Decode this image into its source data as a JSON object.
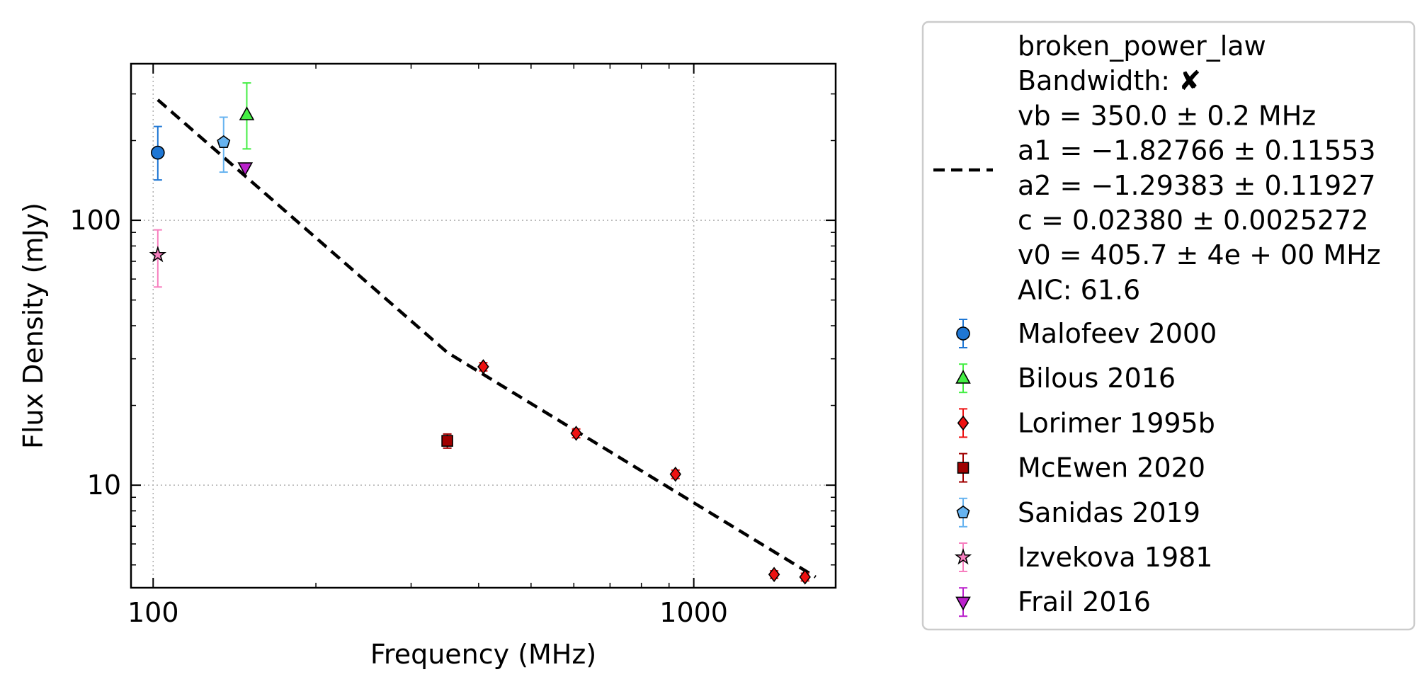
{
  "chart_data": {
    "type": "scatter",
    "xlabel": "Frequency (MHz)",
    "ylabel": "Flux Density (mJy)",
    "xscale": "log",
    "yscale": "log",
    "xlim": [
      91,
      1830
    ],
    "ylim": [
      4.1,
      390
    ],
    "grid": true,
    "legend_placement": "outside-right",
    "x_ticks": [
      {
        "value": 100,
        "label": "100"
      },
      {
        "value": 1000,
        "label": "1000"
      }
    ],
    "y_ticks": [
      {
        "value": 10,
        "label": "10"
      },
      {
        "value": 100,
        "label": "100"
      }
    ],
    "fit": {
      "name": "broken_power_law",
      "color": "#000000",
      "style": "dashed",
      "x": [
        102,
        350,
        1680
      ],
      "y": [
        285,
        31.7,
        4.5
      ],
      "legend_lines": [
        "broken_power_law",
        "Bandwidth: ✘",
        "vb = 350.0 ± 0.2 MHz",
        "a1 = −1.82766 ± 0.11553",
        "a2 = −1.29383 ± 0.11927",
        "c = 0.02380 ± 0.0025272",
        "v0 = 405.7 ± 4e + 00 MHz",
        "AIC: 61.6"
      ]
    },
    "series": [
      {
        "name": "Malofeev 2000",
        "marker": "circle",
        "color": "#1f77d4",
        "errcolor": "#1f77d4",
        "points": [
          {
            "x": 102,
            "y": 180,
            "ylo": 142,
            "yhi": 226
          }
        ]
      },
      {
        "name": "Bilous 2016",
        "marker": "triangle-up",
        "color": "#44ee44",
        "errcolor": "#44ee44",
        "points": [
          {
            "x": 149,
            "y": 250,
            "ylo": 186,
            "yhi": 330
          }
        ]
      },
      {
        "name": "Lorimer 1995b",
        "marker": "diamond",
        "color": "#ee1111",
        "errcolor": "#ee1111",
        "points": [
          {
            "x": 408,
            "y": 28,
            "ylo": 27,
            "yhi": 29
          },
          {
            "x": 606,
            "y": 15.7,
            "ylo": 15.1,
            "yhi": 16.3
          },
          {
            "x": 925,
            "y": 11,
            "ylo": 10.6,
            "yhi": 11.4
          },
          {
            "x": 1408,
            "y": 4.6,
            "ylo": 4.45,
            "yhi": 4.75
          },
          {
            "x": 1606,
            "y": 4.5,
            "ylo": 4.35,
            "yhi": 4.65
          }
        ]
      },
      {
        "name": "McEwen 2020",
        "marker": "square",
        "color": "#a00000",
        "errcolor": "#a00000",
        "points": [
          {
            "x": 350,
            "y": 14.7,
            "ylo": 13.8,
            "yhi": 15.6
          }
        ]
      },
      {
        "name": "Sanidas 2019",
        "marker": "pentagon",
        "color": "#66b3f0",
        "errcolor": "#66b3f0",
        "points": [
          {
            "x": 135,
            "y": 197,
            "ylo": 152,
            "yhi": 245
          }
        ]
      },
      {
        "name": "Izvekova 1981",
        "marker": "star",
        "color": "#f77fbf",
        "errcolor": "#f77fbf",
        "points": [
          {
            "x": 102,
            "y": 74,
            "ylo": 56,
            "yhi": 92
          }
        ]
      },
      {
        "name": "Frail 2016",
        "marker": "triangle-down",
        "color": "#bb22cc",
        "errcolor": "#bb22cc",
        "points": [
          {
            "x": 148,
            "y": 158
          }
        ]
      }
    ]
  }
}
